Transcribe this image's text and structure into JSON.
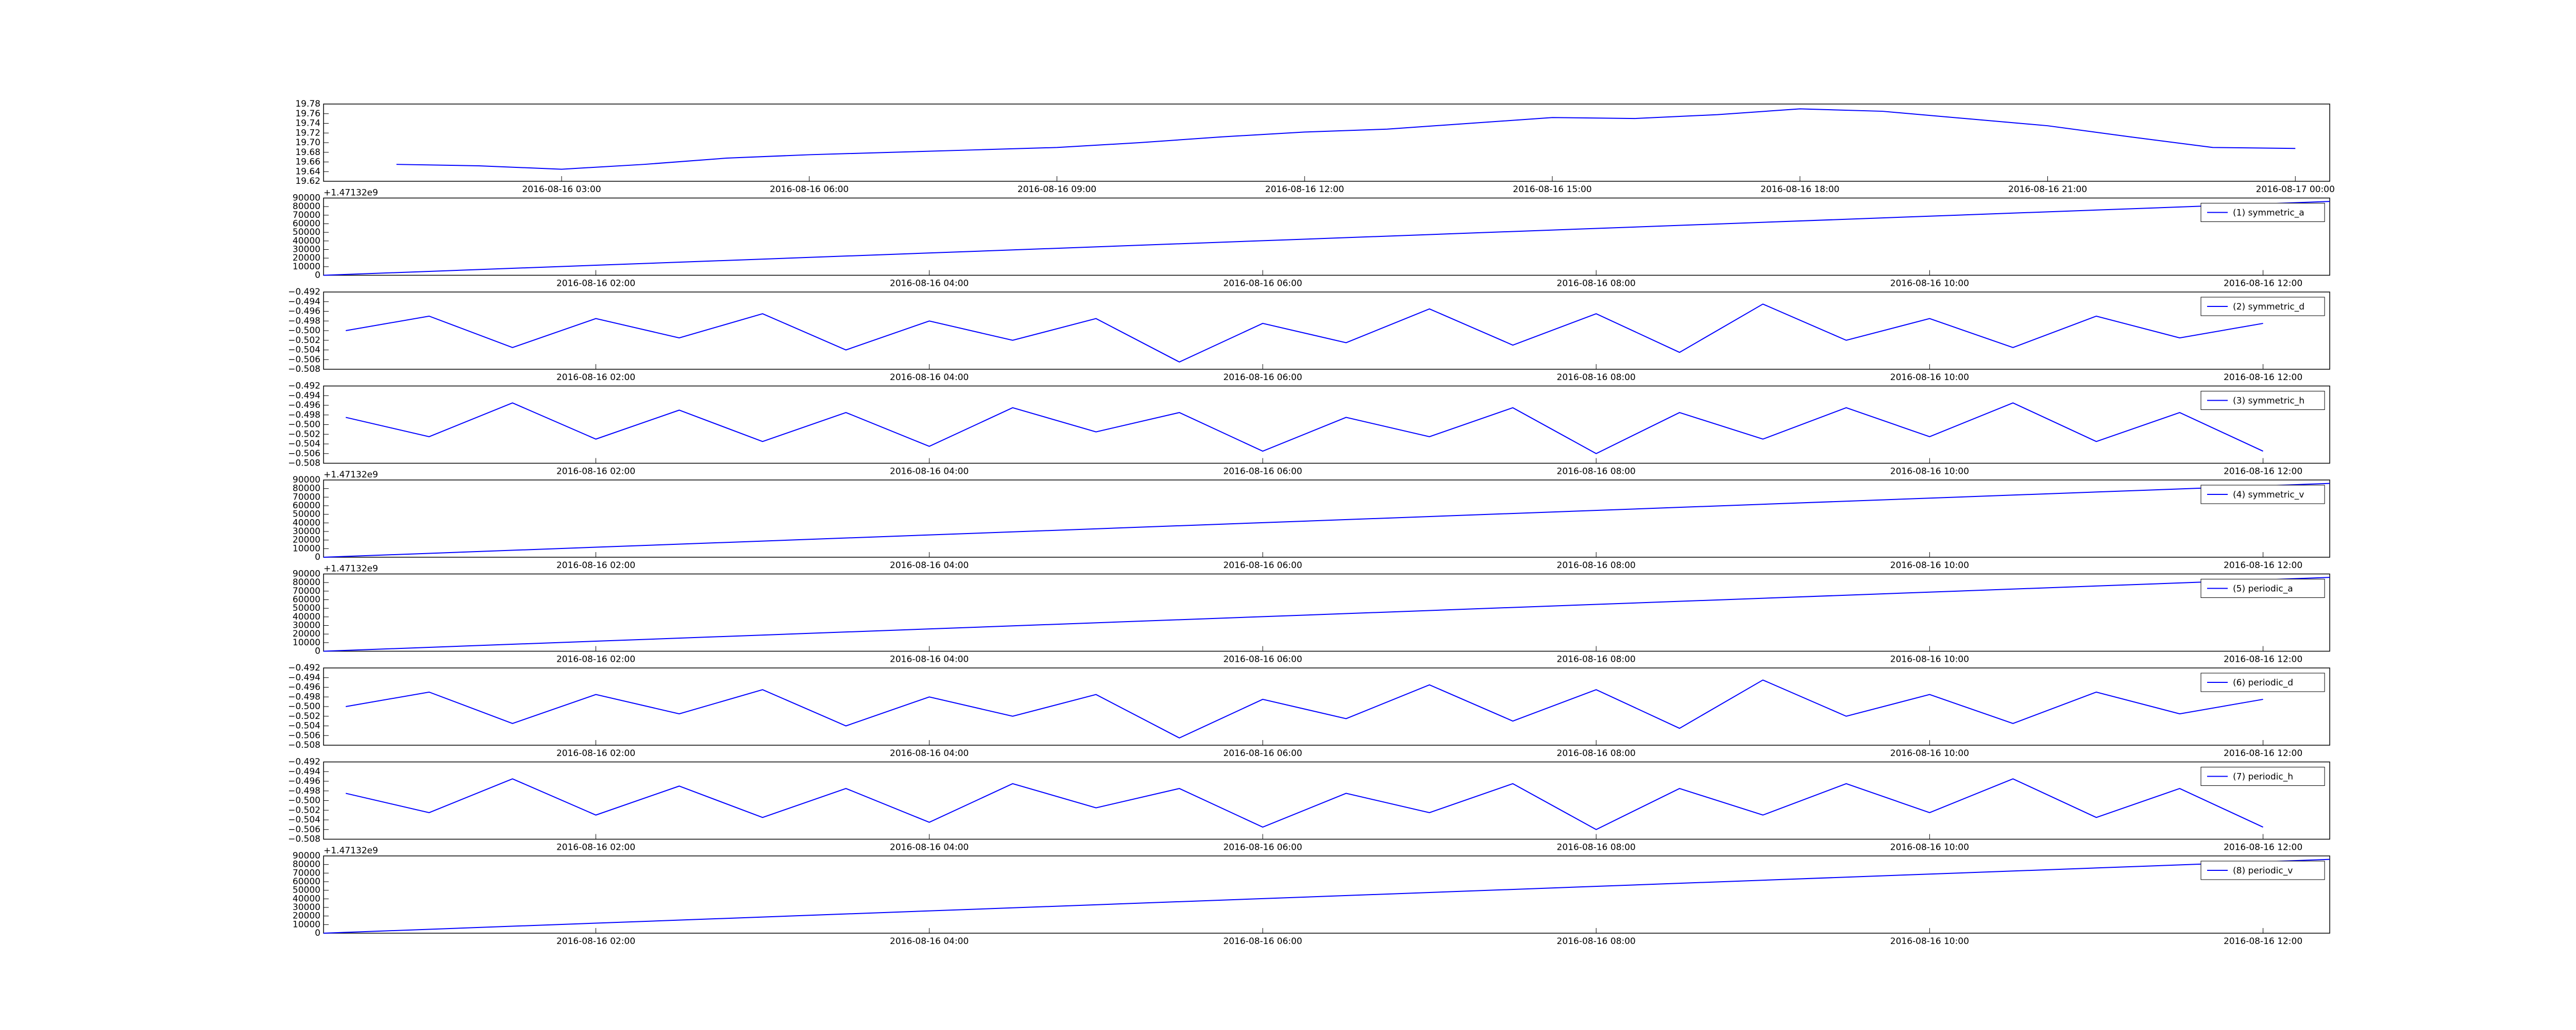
{
  "chart_data": [
    {
      "type": "line",
      "x": [
        "2016-08-16 01:00",
        "2016-08-16 02:00",
        "2016-08-16 03:00",
        "2016-08-16 04:00",
        "2016-08-16 05:00",
        "2016-08-16 06:00",
        "2016-08-16 07:00",
        "2016-08-16 08:00",
        "2016-08-16 09:00",
        "2016-08-16 10:00",
        "2016-08-16 11:00",
        "2016-08-16 12:00",
        "2016-08-16 13:00",
        "2016-08-16 14:00",
        "2016-08-16 15:00",
        "2016-08-16 16:00",
        "2016-08-16 17:00",
        "2016-08-16 18:00",
        "2016-08-16 19:00",
        "2016-08-16 20:00",
        "2016-08-16 21:00",
        "2016-08-16 22:00",
        "2016-08-16 23:00",
        "2016-08-17 00:00"
      ],
      "series": [
        {
          "color": "#0000ff",
          "values": [
            19.655,
            19.652,
            19.645,
            19.655,
            19.668,
            19.675,
            19.68,
            19.685,
            19.69,
            19.7,
            19.712,
            19.722,
            19.728,
            19.74,
            19.752,
            19.75,
            19.758,
            19.77,
            19.765,
            19.75,
            19.735,
            19.712,
            19.69,
            19.688
          ]
        }
      ],
      "xlim": [
        "2016-08-16 00:07",
        "2016-08-17 00:25"
      ],
      "xticks": [
        "2016-08-16 03:00",
        "2016-08-16 06:00",
        "2016-08-16 09:00",
        "2016-08-16 12:00",
        "2016-08-16 15:00",
        "2016-08-16 18:00",
        "2016-08-16 21:00",
        "2016-08-17 00:00"
      ],
      "ylim": [
        19.62,
        19.78
      ],
      "yticks": [
        19.62,
        19.64,
        19.66,
        19.68,
        {
          "value": 19.7,
          "label": "19.70"
        },
        19.72,
        19.74,
        19.76,
        19.78
      ]
    },
    {
      "type": "line",
      "offset_text": "+1.47132e9",
      "legend": "upper right",
      "x": [
        "2016-08-16 00:22",
        "2016-08-16 12:24"
      ],
      "series": [
        {
          "name": "(1) symmetric_a",
          "color": "#0000ff",
          "values": [
            0,
            86000
          ]
        }
      ],
      "xlim": [
        "2016-08-16 00:22",
        "2016-08-16 12:24"
      ],
      "xticks": [
        "2016-08-16 02:00",
        "2016-08-16 04:00",
        "2016-08-16 06:00",
        "2016-08-16 08:00",
        "2016-08-16 10:00",
        "2016-08-16 12:00"
      ],
      "ylim": [
        0,
        90000
      ],
      "yticks": [
        0,
        10000,
        20000,
        30000,
        40000,
        50000,
        60000,
        70000,
        80000,
        90000
      ]
    },
    {
      "type": "line",
      "legend": "upper right",
      "x": [
        "2016-08-16 00:30",
        "2016-08-16 01:00",
        "2016-08-16 01:30",
        "2016-08-16 02:00",
        "2016-08-16 02:30",
        "2016-08-16 03:00",
        "2016-08-16 03:30",
        "2016-08-16 04:00",
        "2016-08-16 04:30",
        "2016-08-16 05:00",
        "2016-08-16 05:30",
        "2016-08-16 06:00",
        "2016-08-16 06:30",
        "2016-08-16 07:00",
        "2016-08-16 07:30",
        "2016-08-16 08:00",
        "2016-08-16 08:30",
        "2016-08-16 09:00",
        "2016-08-16 09:30",
        "2016-08-16 10:00",
        "2016-08-16 10:30",
        "2016-08-16 11:00",
        "2016-08-16 11:30",
        "2016-08-16 12:00"
      ],
      "series": [
        {
          "name": "(2) symmetric_d",
          "color": "#0000ff",
          "values": [
            -0.5,
            -0.497,
            -0.5035,
            -0.4975,
            -0.5015,
            -0.4965,
            -0.504,
            -0.498,
            -0.502,
            -0.4975,
            -0.5065,
            -0.4985,
            -0.5025,
            -0.4955,
            -0.503,
            -0.4965,
            -0.5045,
            -0.4945,
            -0.502,
            -0.4975,
            -0.5035,
            -0.497,
            -0.5015,
            -0.4985
          ]
        }
      ],
      "xlim": [
        "2016-08-16 00:22",
        "2016-08-16 12:24"
      ],
      "xticks": [
        "2016-08-16 02:00",
        "2016-08-16 04:00",
        "2016-08-16 06:00",
        "2016-08-16 08:00",
        "2016-08-16 10:00",
        "2016-08-16 12:00"
      ],
      "ylim": [
        -0.508,
        -0.492
      ],
      "yticks": [
        {
          "value": -0.508,
          "label": "−0.508"
        },
        {
          "value": -0.506,
          "label": "−0.506"
        },
        {
          "value": -0.504,
          "label": "−0.504"
        },
        {
          "value": -0.502,
          "label": "−0.502"
        },
        {
          "value": -0.5,
          "label": "−0.500"
        },
        {
          "value": -0.498,
          "label": "−0.498"
        },
        {
          "value": -0.496,
          "label": "−0.496"
        },
        {
          "value": -0.494,
          "label": "−0.494"
        },
        {
          "value": -0.492,
          "label": "−0.492"
        }
      ]
    },
    {
      "type": "line",
      "legend": "upper right",
      "x": [
        "2016-08-16 00:30",
        "2016-08-16 01:00",
        "2016-08-16 01:30",
        "2016-08-16 02:00",
        "2016-08-16 02:30",
        "2016-08-16 03:00",
        "2016-08-16 03:30",
        "2016-08-16 04:00",
        "2016-08-16 04:30",
        "2016-08-16 05:00",
        "2016-08-16 05:30",
        "2016-08-16 06:00",
        "2016-08-16 06:30",
        "2016-08-16 07:00",
        "2016-08-16 07:30",
        "2016-08-16 08:00",
        "2016-08-16 08:30",
        "2016-08-16 09:00",
        "2016-08-16 09:30",
        "2016-08-16 10:00",
        "2016-08-16 10:30",
        "2016-08-16 11:00",
        "2016-08-16 11:30",
        "2016-08-16 12:00"
      ],
      "series": [
        {
          "name": "(3) symmetric_h",
          "color": "#0000ff",
          "values": [
            -0.4985,
            -0.5025,
            -0.4955,
            -0.503,
            -0.497,
            -0.5035,
            -0.4975,
            -0.5045,
            -0.4965,
            -0.5015,
            -0.4975,
            -0.5055,
            -0.4985,
            -0.5025,
            -0.4965,
            -0.506,
            -0.4975,
            -0.503,
            -0.4965,
            -0.5025,
            -0.4955,
            -0.5035,
            -0.4975,
            -0.5055
          ]
        }
      ],
      "xlim": [
        "2016-08-16 00:22",
        "2016-08-16 12:24"
      ],
      "xticks": [
        "2016-08-16 02:00",
        "2016-08-16 04:00",
        "2016-08-16 06:00",
        "2016-08-16 08:00",
        "2016-08-16 10:00",
        "2016-08-16 12:00"
      ],
      "ylim": [
        -0.508,
        -0.492
      ],
      "yticks": [
        {
          "value": -0.508,
          "label": "−0.508"
        },
        {
          "value": -0.506,
          "label": "−0.506"
        },
        {
          "value": -0.504,
          "label": "−0.504"
        },
        {
          "value": -0.502,
          "label": "−0.502"
        },
        {
          "value": -0.5,
          "label": "−0.500"
        },
        {
          "value": -0.498,
          "label": "−0.498"
        },
        {
          "value": -0.496,
          "label": "−0.496"
        },
        {
          "value": -0.494,
          "label": "−0.494"
        },
        {
          "value": -0.492,
          "label": "−0.492"
        }
      ]
    },
    {
      "type": "line",
      "offset_text": "+1.47132e9",
      "legend": "upper right",
      "x": [
        "2016-08-16 00:22",
        "2016-08-16 12:24"
      ],
      "series": [
        {
          "name": "(4) symmetric_v",
          "color": "#0000ff",
          "values": [
            0,
            86000
          ]
        }
      ],
      "xlim": [
        "2016-08-16 00:22",
        "2016-08-16 12:24"
      ],
      "xticks": [
        "2016-08-16 02:00",
        "2016-08-16 04:00",
        "2016-08-16 06:00",
        "2016-08-16 08:00",
        "2016-08-16 10:00",
        "2016-08-16 12:00"
      ],
      "ylim": [
        0,
        90000
      ],
      "yticks": [
        0,
        10000,
        20000,
        30000,
        40000,
        50000,
        60000,
        70000,
        80000,
        90000
      ]
    },
    {
      "type": "line",
      "offset_text": "+1.47132e9",
      "legend": "upper right",
      "x": [
        "2016-08-16 00:22",
        "2016-08-16 12:24"
      ],
      "series": [
        {
          "name": "(5) periodic_a",
          "color": "#0000ff",
          "values": [
            0,
            86000
          ]
        }
      ],
      "xlim": [
        "2016-08-16 00:22",
        "2016-08-16 12:24"
      ],
      "xticks": [
        "2016-08-16 02:00",
        "2016-08-16 04:00",
        "2016-08-16 06:00",
        "2016-08-16 08:00",
        "2016-08-16 10:00",
        "2016-08-16 12:00"
      ],
      "ylim": [
        0,
        90000
      ],
      "yticks": [
        0,
        10000,
        20000,
        30000,
        40000,
        50000,
        60000,
        70000,
        80000,
        90000
      ]
    },
    {
      "type": "line",
      "legend": "upper right",
      "x": [
        "2016-08-16 00:30",
        "2016-08-16 01:00",
        "2016-08-16 01:30",
        "2016-08-16 02:00",
        "2016-08-16 02:30",
        "2016-08-16 03:00",
        "2016-08-16 03:30",
        "2016-08-16 04:00",
        "2016-08-16 04:30",
        "2016-08-16 05:00",
        "2016-08-16 05:30",
        "2016-08-16 06:00",
        "2016-08-16 06:30",
        "2016-08-16 07:00",
        "2016-08-16 07:30",
        "2016-08-16 08:00",
        "2016-08-16 08:30",
        "2016-08-16 09:00",
        "2016-08-16 09:30",
        "2016-08-16 10:00",
        "2016-08-16 10:30",
        "2016-08-16 11:00",
        "2016-08-16 11:30",
        "2016-08-16 12:00"
      ],
      "series": [
        {
          "name": "(6) periodic_d",
          "color": "#0000ff",
          "values": [
            -0.5,
            -0.497,
            -0.5035,
            -0.4975,
            -0.5015,
            -0.4965,
            -0.504,
            -0.498,
            -0.502,
            -0.4975,
            -0.5065,
            -0.4985,
            -0.5025,
            -0.4955,
            -0.503,
            -0.4965,
            -0.5045,
            -0.4945,
            -0.502,
            -0.4975,
            -0.5035,
            -0.497,
            -0.5015,
            -0.4985
          ]
        }
      ],
      "xlim": [
        "2016-08-16 00:22",
        "2016-08-16 12:24"
      ],
      "xticks": [
        "2016-08-16 02:00",
        "2016-08-16 04:00",
        "2016-08-16 06:00",
        "2016-08-16 08:00",
        "2016-08-16 10:00",
        "2016-08-16 12:00"
      ],
      "ylim": [
        -0.508,
        -0.492
      ],
      "yticks": [
        {
          "value": -0.508,
          "label": "−0.508"
        },
        {
          "value": -0.506,
          "label": "−0.506"
        },
        {
          "value": -0.504,
          "label": "−0.504"
        },
        {
          "value": -0.502,
          "label": "−0.502"
        },
        {
          "value": -0.5,
          "label": "−0.500"
        },
        {
          "value": -0.498,
          "label": "−0.498"
        },
        {
          "value": -0.496,
          "label": "−0.496"
        },
        {
          "value": -0.494,
          "label": "−0.494"
        },
        {
          "value": -0.492,
          "label": "−0.492"
        }
      ]
    },
    {
      "type": "line",
      "legend": "upper right",
      "x": [
        "2016-08-16 00:30",
        "2016-08-16 01:00",
        "2016-08-16 01:30",
        "2016-08-16 02:00",
        "2016-08-16 02:30",
        "2016-08-16 03:00",
        "2016-08-16 03:30",
        "2016-08-16 04:00",
        "2016-08-16 04:30",
        "2016-08-16 05:00",
        "2016-08-16 05:30",
        "2016-08-16 06:00",
        "2016-08-16 06:30",
        "2016-08-16 07:00",
        "2016-08-16 07:30",
        "2016-08-16 08:00",
        "2016-08-16 08:30",
        "2016-08-16 09:00",
        "2016-08-16 09:30",
        "2016-08-16 10:00",
        "2016-08-16 10:30",
        "2016-08-16 11:00",
        "2016-08-16 11:30",
        "2016-08-16 12:00"
      ],
      "series": [
        {
          "name": "(7) periodic_h",
          "color": "#0000ff",
          "values": [
            -0.4985,
            -0.5025,
            -0.4955,
            -0.503,
            -0.497,
            -0.5035,
            -0.4975,
            -0.5045,
            -0.4965,
            -0.5015,
            -0.4975,
            -0.5055,
            -0.4985,
            -0.5025,
            -0.4965,
            -0.506,
            -0.4975,
            -0.503,
            -0.4965,
            -0.5025,
            -0.4955,
            -0.5035,
            -0.4975,
            -0.5055
          ]
        }
      ],
      "xlim": [
        "2016-08-16 00:22",
        "2016-08-16 12:24"
      ],
      "xticks": [
        "2016-08-16 02:00",
        "2016-08-16 04:00",
        "2016-08-16 06:00",
        "2016-08-16 08:00",
        "2016-08-16 10:00",
        "2016-08-16 12:00"
      ],
      "ylim": [
        -0.508,
        -0.492
      ],
      "yticks": [
        {
          "value": -0.508,
          "label": "−0.508"
        },
        {
          "value": -0.506,
          "label": "−0.506"
        },
        {
          "value": -0.504,
          "label": "−0.504"
        },
        {
          "value": -0.502,
          "label": "−0.502"
        },
        {
          "value": -0.5,
          "label": "−0.500"
        },
        {
          "value": -0.498,
          "label": "−0.498"
        },
        {
          "value": -0.496,
          "label": "−0.496"
        },
        {
          "value": -0.494,
          "label": "−0.494"
        },
        {
          "value": -0.492,
          "label": "−0.492"
        }
      ]
    },
    {
      "type": "line",
      "offset_text": "+1.47132e9",
      "legend": "upper right",
      "x": [
        "2016-08-16 00:22",
        "2016-08-16 12:24"
      ],
      "series": [
        {
          "name": "(8) periodic_v",
          "color": "#0000ff",
          "values": [
            0,
            86000
          ]
        }
      ],
      "xlim": [
        "2016-08-16 00:22",
        "2016-08-16 12:24"
      ],
      "xticks": [
        "2016-08-16 02:00",
        "2016-08-16 04:00",
        "2016-08-16 06:00",
        "2016-08-16 08:00",
        "2016-08-16 10:00",
        "2016-08-16 12:00"
      ],
      "ylim": [
        0,
        90000
      ],
      "yticks": [
        0,
        10000,
        20000,
        30000,
        40000,
        50000,
        60000,
        70000,
        80000,
        90000
      ]
    }
  ]
}
